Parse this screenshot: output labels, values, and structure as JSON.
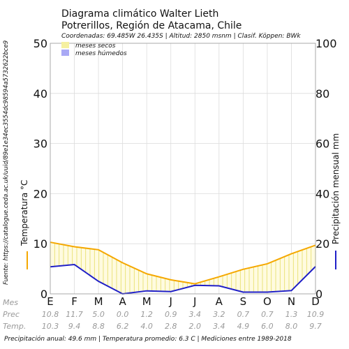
{
  "header": {
    "title_line1": "Diagrama climático Walter Lieth",
    "title_line2": "Potrerillos, Región de Atacama, Chile",
    "subtitle": "Coordenadas: 69.485W 26.435S | Altitud: 2850 msnm | Clasif. Köppen: BWk"
  },
  "legend": {
    "dry_label": "meses secos",
    "wet_label": "meses húmedos",
    "dry_color": "#f5f0a0",
    "wet_color": "#a9a9f5"
  },
  "source_text": "Fuente: https://catalogue.ceda.ac.uk/uuid/89e1e34ec3554dc98594a5732622bce9",
  "footer_text": "Precipitación anual: 49.6 mm | Temperatura promedio: 6.3 C | Mediciones entre 1989-2018",
  "row_labels": {
    "month": "Mes",
    "prec": "Prec",
    "temp": "Temp."
  },
  "chart_data": {
    "type": "line",
    "categories": [
      "E",
      "F",
      "M",
      "A",
      "M",
      "J",
      "J",
      "A",
      "S",
      "O",
      "N",
      "D"
    ],
    "temp_values_text": [
      "10.3",
      "9.4",
      "8.8",
      "6.2",
      "4.0",
      "2.8",
      "2.0",
      "3.4",
      "4.9",
      "6.0",
      "8.0",
      "9.7"
    ],
    "prec_values_text": [
      "10.8",
      "11.7",
      "5.0",
      "0.0",
      "1.2",
      "0.9",
      "3.4",
      "3.2",
      "0.7",
      "0.7",
      "1.3",
      "10.9"
    ],
    "series": [
      {
        "name": "Temperatura",
        "axis": "left",
        "color": "#f5a800",
        "values": [
          10.3,
          9.4,
          8.8,
          6.2,
          4.0,
          2.8,
          2.0,
          3.4,
          4.9,
          6.0,
          8.0,
          9.7
        ]
      },
      {
        "name": "Precipitación mensual",
        "axis": "right",
        "color": "#1f1fc8",
        "values": [
          10.8,
          11.7,
          5.0,
          0.0,
          1.2,
          0.9,
          3.4,
          3.2,
          0.7,
          0.7,
          1.3,
          10.9
        ]
      }
    ],
    "y_left": {
      "label": "Temperatura °C",
      "ticks": [
        "0",
        "10",
        "20",
        "30",
        "40",
        "50"
      ],
      "range": [
        0,
        50
      ]
    },
    "y_right": {
      "label": "Precipitación mensual mm",
      "ticks": [
        "0",
        "20",
        "40",
        "60",
        "80",
        "100"
      ],
      "range": [
        0,
        100
      ]
    },
    "grid": true,
    "legend_position": "top-left"
  }
}
